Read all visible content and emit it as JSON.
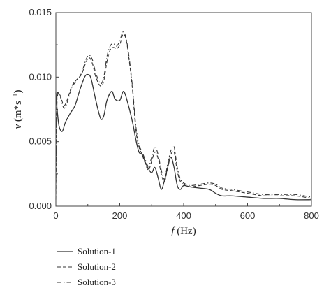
{
  "chart_data": {
    "type": "line",
    "title": "",
    "xlabel": {
      "symbol": "f",
      "unit": " (Hz)"
    },
    "ylabel": {
      "symbol": "v",
      "unit_base": " (m*s",
      "unit_exp": "−1",
      "unit_close": ")"
    },
    "xlim": [
      0,
      800
    ],
    "ylim": [
      0,
      0.015
    ],
    "xticks": [
      0,
      200,
      400,
      600,
      800
    ],
    "xtick_labels": [
      "0",
      "200",
      "400",
      "600",
      "800"
    ],
    "yticks": [
      0,
      0.005,
      0.01,
      0.015
    ],
    "ytick_labels": [
      "0.000",
      "0.005",
      "0.010",
      "0.015"
    ],
    "grid": false,
    "legend_position": "below",
    "series": [
      {
        "name": "Solution-1",
        "style": "solid",
        "color": "#333333",
        "x": [
          0,
          4,
          10,
          20,
          30,
          45,
          60,
          75,
          90,
          100,
          110,
          125,
          140,
          150,
          160,
          175,
          185,
          200,
          212,
          225,
          240,
          250,
          260,
          270,
          280,
          290,
          300,
          310,
          320,
          330,
          340,
          350,
          360,
          370,
          380,
          390,
          400,
          420,
          450,
          480,
          500,
          520,
          550,
          600,
          650,
          700,
          750,
          800
        ],
        "y": [
          0.0088,
          0.0075,
          0.0062,
          0.0058,
          0.0065,
          0.0072,
          0.0078,
          0.009,
          0.01,
          0.0102,
          0.0099,
          0.0082,
          0.0068,
          0.007,
          0.0082,
          0.0089,
          0.0083,
          0.0082,
          0.0089,
          0.008,
          0.0065,
          0.0052,
          0.0042,
          0.004,
          0.0034,
          0.0029,
          0.0026,
          0.003,
          0.0022,
          0.0013,
          0.002,
          0.003,
          0.0038,
          0.003,
          0.0016,
          0.0013,
          0.0016,
          0.0015,
          0.0014,
          0.0013,
          0.001,
          0.0008,
          0.0008,
          0.0007,
          0.0006,
          0.0006,
          0.0005,
          0.0005
        ]
      },
      {
        "name": "Solution-2",
        "style": "dashed",
        "color": "#333333",
        "x": [
          0,
          3,
          8,
          15,
          25,
          35,
          50,
          65,
          80,
          95,
          105,
          115,
          125,
          140,
          150,
          160,
          170,
          180,
          190,
          200,
          210,
          220,
          230,
          240,
          250,
          260,
          270,
          280,
          290,
          300,
          310,
          320,
          330,
          340,
          350,
          360,
          370,
          380,
          390,
          400,
          420,
          450,
          480,
          500,
          520,
          550,
          600,
          650,
          700,
          750,
          800
        ],
        "y": [
          0.0005,
          0.008,
          0.0087,
          0.0085,
          0.0078,
          0.0082,
          0.0093,
          0.0098,
          0.0102,
          0.0112,
          0.0115,
          0.011,
          0.01,
          0.0093,
          0.0097,
          0.0112,
          0.0121,
          0.0123,
          0.0122,
          0.0125,
          0.0133,
          0.0129,
          0.0112,
          0.009,
          0.006,
          0.0046,
          0.004,
          0.0033,
          0.0028,
          0.0035,
          0.0042,
          0.0037,
          0.0025,
          0.0019,
          0.003,
          0.004,
          0.0042,
          0.0027,
          0.0019,
          0.0017,
          0.0015,
          0.0016,
          0.0017,
          0.0016,
          0.0013,
          0.0012,
          0.001,
          0.0008,
          0.0008,
          0.0008,
          0.0006
        ]
      },
      {
        "name": "Solution-3",
        "style": "dashdot",
        "color": "#333333",
        "x": [
          0,
          3,
          8,
          15,
          25,
          35,
          50,
          65,
          80,
          95,
          105,
          115,
          125,
          140,
          150,
          160,
          170,
          180,
          190,
          200,
          210,
          220,
          230,
          240,
          250,
          260,
          270,
          280,
          290,
          300,
          310,
          320,
          330,
          340,
          350,
          360,
          370,
          380,
          390,
          400,
          420,
          450,
          480,
          500,
          520,
          550,
          600,
          650,
          700,
          750,
          800
        ],
        "y": [
          0.0012,
          0.0075,
          0.0088,
          0.0084,
          0.0076,
          0.008,
          0.0092,
          0.0097,
          0.0103,
          0.0114,
          0.0117,
          0.0113,
          0.0103,
          0.0095,
          0.01,
          0.0116,
          0.0124,
          0.0126,
          0.0124,
          0.0128,
          0.0135,
          0.013,
          0.0114,
          0.0092,
          0.0063,
          0.0048,
          0.0042,
          0.0036,
          0.0031,
          0.0038,
          0.0046,
          0.004,
          0.0028,
          0.0021,
          0.0033,
          0.0043,
          0.0046,
          0.003,
          0.0021,
          0.0018,
          0.0016,
          0.0017,
          0.0018,
          0.0017,
          0.0014,
          0.0013,
          0.0011,
          0.0009,
          0.0009,
          0.0009,
          0.0007
        ]
      }
    ]
  }
}
